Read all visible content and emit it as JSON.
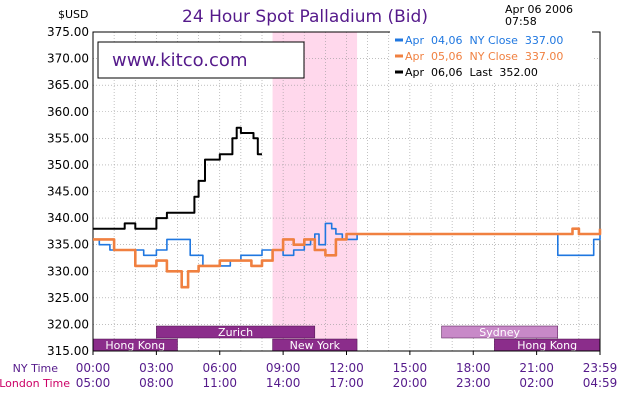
{
  "header": {
    "unit": "$USD",
    "title": "24 Hour Spot Palladium (Bid)",
    "date": "Apr 06 2006",
    "time": "07:58",
    "watermark": "www.kitco.com"
  },
  "colors": {
    "title": "#551a8b",
    "apr04": "#1f77e0",
    "apr05": "#f08040",
    "apr06": "#000000",
    "ny_band": "#ffd8ec",
    "session_bar": "#8b2d8b",
    "session_bar_light": "#c889c8",
    "axis_label_purple": "#551a8b",
    "london_label": "#cc0066",
    "grid": "#999999"
  },
  "sessions": {
    "upper": [
      {
        "label": "Zurich",
        "start": 3.0,
        "end": 10.5,
        "style": "dark"
      },
      {
        "label": "Sydney",
        "start": 16.5,
        "end": 22.0,
        "style": "light"
      }
    ],
    "lower": [
      {
        "label": "Hong Kong",
        "start": 0.0,
        "end": 4.0,
        "style": "dark"
      },
      {
        "label": "New York",
        "start": 8.5,
        "end": 12.5,
        "style": "dark"
      },
      {
        "label": "Hong Kong",
        "start": 19.0,
        "end": 24.0,
        "style": "dark"
      }
    ]
  },
  "x_labels": {
    "ny_caption": "NY Time",
    "london_caption": "London Time",
    "ny": [
      "00:00",
      "03:00",
      "06:00",
      "09:00",
      "12:00",
      "15:00",
      "18:00",
      "21:00",
      "23:59"
    ],
    "london": [
      "05:00",
      "08:00",
      "11:00",
      "14:00",
      "17:00",
      "20:00",
      "23:00",
      "02:00",
      "04:59"
    ]
  },
  "chart_data": {
    "type": "line",
    "title": "24 Hour Spot Palladium (Bid)",
    "ylabel": "$USD",
    "xlabel": "NY Time",
    "xlim": [
      0,
      24
    ],
    "ylim": [
      315,
      375
    ],
    "y_ticks": [
      "315.00",
      "320.00",
      "325.00",
      "330.00",
      "335.00",
      "340.00",
      "345.00",
      "350.00",
      "355.00",
      "360.00",
      "365.00",
      "370.00",
      "375.00"
    ],
    "shaded_region": {
      "start": 8.5,
      "end": 12.5
    },
    "grid": true,
    "legend_position": "top-right",
    "series": [
      {
        "name": "Apr 04,06",
        "legend_text": "Apr  04,06  NY Close  337.00",
        "x": [
          0.0,
          0.3,
          0.8,
          1.5,
          2.2,
          2.4,
          2.6,
          3.0,
          3.5,
          4.5,
          4.6,
          5.0,
          5.2,
          6.0,
          6.5,
          7.0,
          7.5,
          8.0,
          8.5,
          9.0,
          9.5,
          10.0,
          10.3,
          10.5,
          10.7,
          11.0,
          11.3,
          11.5,
          11.8,
          12.0,
          12.5,
          13.0,
          18.0,
          22.0,
          23.5,
          23.7,
          24.0
        ],
        "y": [
          336,
          335,
          334,
          334,
          334,
          333,
          333,
          334,
          336,
          336,
          333,
          333,
          331,
          331,
          332,
          333,
          333,
          334,
          334,
          333,
          334,
          335,
          336,
          337,
          335,
          339,
          338,
          337,
          336,
          336,
          337,
          337,
          337,
          333,
          333,
          336,
          337
        ]
      },
      {
        "name": "Apr 05,06",
        "legend_text": "Apr  05,06  NY Close  337.00",
        "x": [
          0.0,
          0.5,
          1.0,
          1.5,
          2.0,
          2.5,
          3.0,
          3.5,
          4.0,
          4.2,
          4.5,
          5.0,
          5.5,
          6.0,
          6.5,
          7.0,
          7.5,
          8.0,
          8.5,
          9.0,
          9.5,
          10.0,
          10.5,
          11.0,
          11.5,
          12.0,
          22.5,
          22.7,
          23.0,
          23.5,
          24.0
        ],
        "y": [
          336,
          336,
          334,
          334,
          331,
          331,
          332,
          330,
          330,
          327,
          330,
          331,
          331,
          332,
          332,
          332,
          331,
          332,
          334,
          336,
          335,
          336,
          334,
          333,
          336,
          337,
          337,
          338,
          337,
          337,
          338
        ]
      },
      {
        "name": "Apr 06,06",
        "legend_text": "Apr  06,06  Last  352.00",
        "x": [
          0.0,
          0.5,
          1.0,
          1.5,
          2.0,
          2.5,
          3.0,
          3.5,
          4.0,
          4.5,
          4.8,
          5.0,
          5.3,
          5.6,
          5.8,
          6.0,
          6.3,
          6.6,
          6.8,
          7.0,
          7.3,
          7.6,
          7.8,
          8.0
        ],
        "y": [
          338,
          338,
          338,
          339,
          338,
          338,
          340,
          341,
          341,
          341,
          344,
          347,
          351,
          351,
          351,
          352,
          352,
          355,
          357,
          356,
          356,
          355,
          352,
          352
        ]
      }
    ]
  }
}
